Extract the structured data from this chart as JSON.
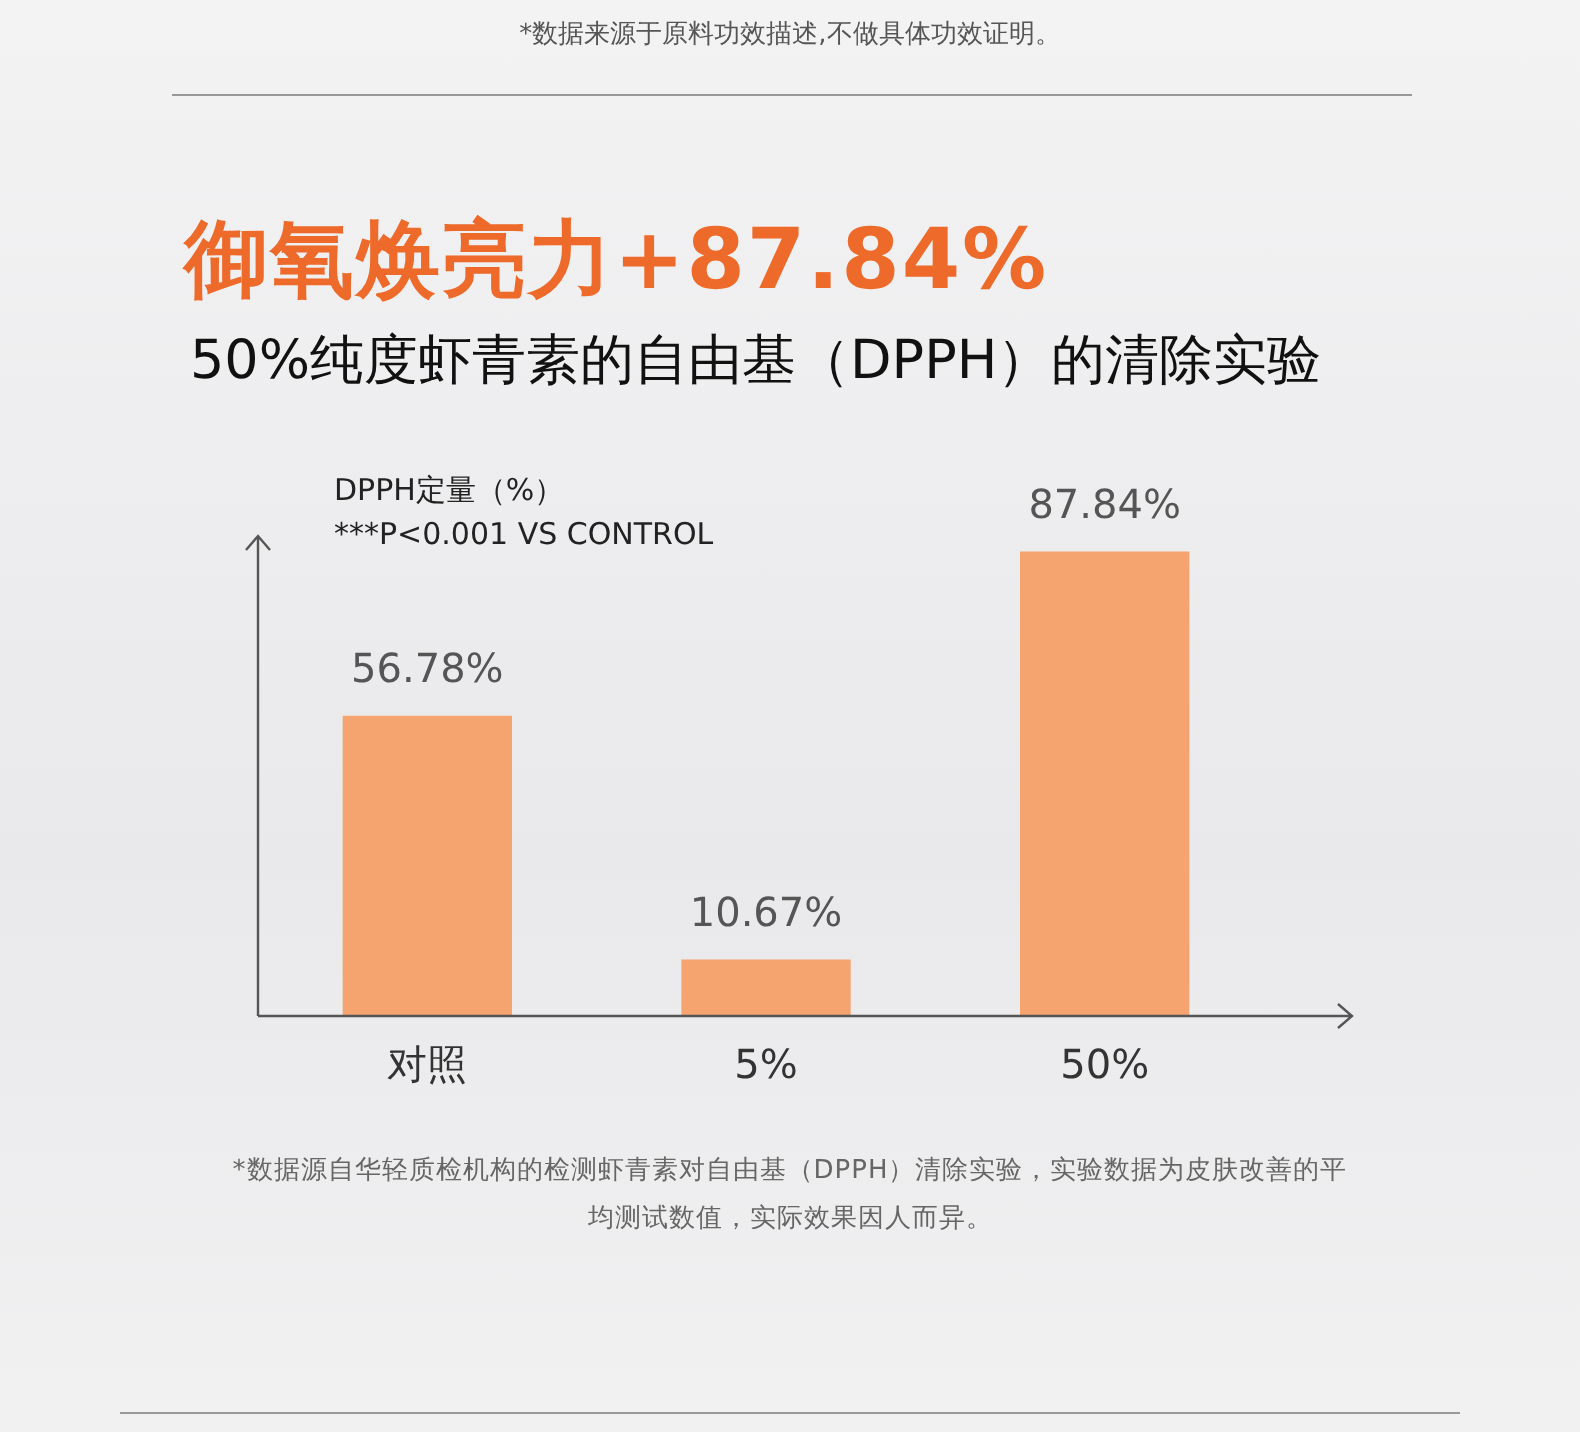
{
  "chart_data": {
    "type": "bar",
    "title": "御氧焕亮力+87.84%",
    "subtitle": "50%纯度虾青素的自由基（DPPH）的清除实验",
    "ylabel": "DPPH定量（%）",
    "categories": [
      "对照",
      "5%",
      "50%"
    ],
    "values": [
      56.78,
      10.67,
      87.84
    ],
    "color": "#f6a46f",
    "value_labels": [
      "56.78%",
      "10.67%",
      "87.84%"
    ],
    "legend": false,
    "grid": false,
    "annotations": [
      "***P<0.001 VS CONTROL",
      "*数据来源于原料功效描述,不做具体功效证明。",
      "*数据源自华轻质检机构的检测虾青素对自由基（DPPH）清除实验，实验数据为皮肤改善的平均测试数值，实际效果因人而异。"
    ]
  }
}
